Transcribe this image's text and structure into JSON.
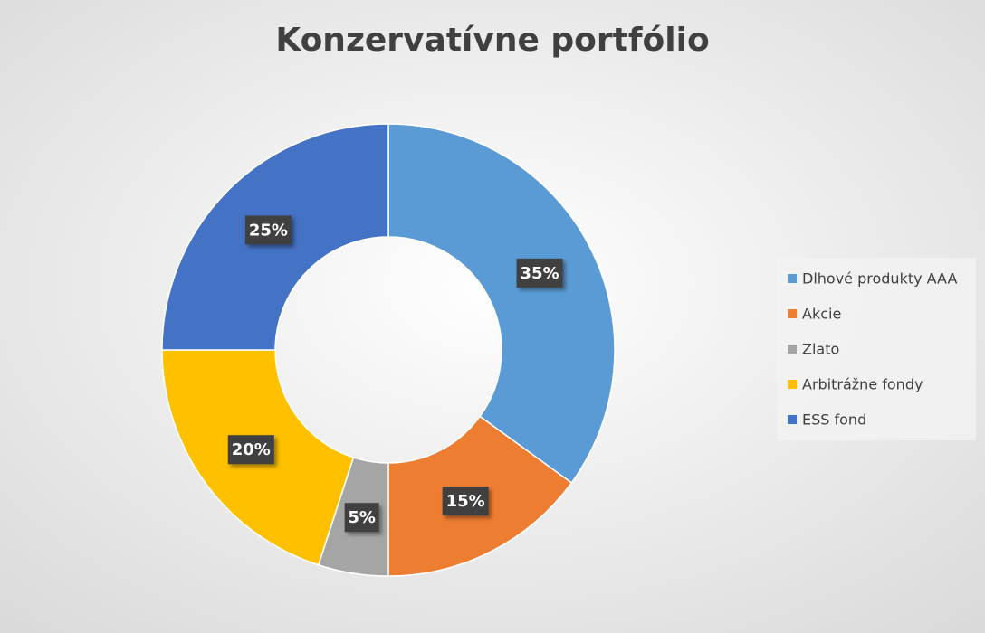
{
  "chart_data": {
    "type": "donut",
    "title": "Konzervatívne portfólio",
    "categories": [
      "Dlhové produkty AAA",
      "Akcie",
      "Zlato",
      "Arbitrážne fondy",
      "ESS fond"
    ],
    "values": [
      35,
      15,
      5,
      20,
      25
    ],
    "value_labels": [
      "35%",
      "15%",
      "5%",
      "20%",
      "25%"
    ],
    "colors": [
      "#5b9bd5",
      "#ed7d31",
      "#a5a5a5",
      "#ffc000",
      "#4472c4"
    ],
    "legend": "right"
  }
}
